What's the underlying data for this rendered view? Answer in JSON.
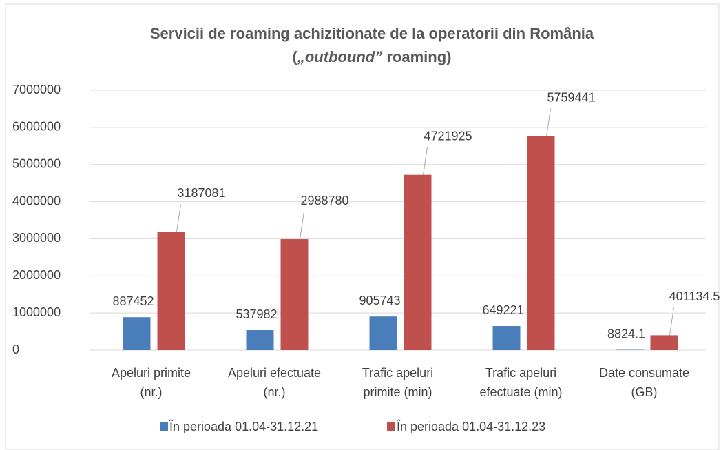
{
  "chart_data": {
    "type": "bar",
    "title": "Servicii de roaming achizitionate de la operatorii din România",
    "subtitle": [
      {
        "text": "(",
        "italic": false
      },
      {
        "text": "„outbound”",
        "italic": true
      },
      {
        "text": " roaming)",
        "italic": false
      }
    ],
    "categories": [
      [
        "Apeluri primite",
        "(nr.)"
      ],
      [
        "Apeluri efectuate",
        "(nr.)"
      ],
      [
        "Trafic apeluri",
        "primite (min)"
      ],
      [
        "Trafic apeluri",
        "efectuate (min)"
      ],
      [
        "Date consumate",
        "(GB)"
      ]
    ],
    "series": [
      {
        "name": "În perioada 01.04-31.12.21",
        "color": "#4a7ebb",
        "values": [
          887452,
          537982,
          905743,
          649221,
          8824.1
        ]
      },
      {
        "name": "În perioada 01.04-31.12.23",
        "color": "#c0504d",
        "values": [
          3187081,
          2988780,
          4721925,
          5759441,
          401134.5
        ]
      }
    ],
    "ylim": [
      0,
      7000000
    ],
    "yticks": [
      0,
      1000000,
      2000000,
      3000000,
      4000000,
      5000000,
      6000000,
      7000000
    ],
    "grid": true,
    "legend": "bottom"
  }
}
